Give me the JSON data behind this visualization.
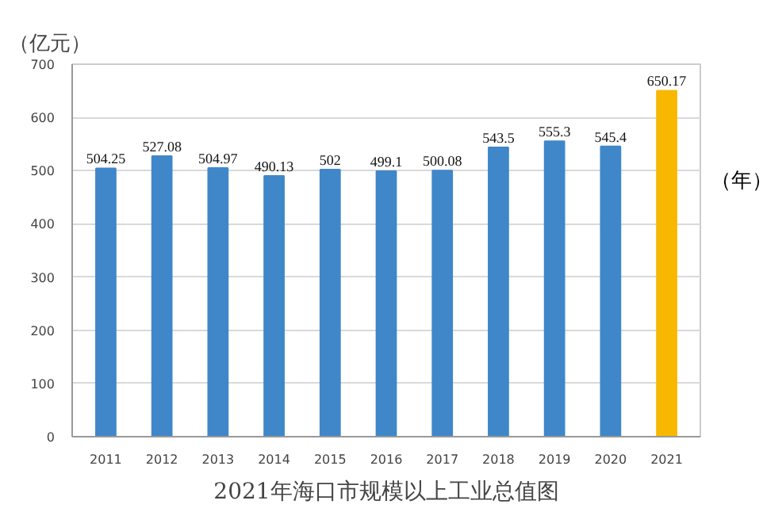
{
  "chart_data": {
    "type": "bar",
    "title": "2021年海口市规模以上工业总值图",
    "ylabel": "（亿元）",
    "xlabel": "（年）",
    "categories": [
      "2011",
      "2012",
      "2013",
      "2014",
      "2015",
      "2016",
      "2017",
      "2018",
      "2019",
      "2020",
      "2021"
    ],
    "values": [
      504.25,
      527.08,
      504.97,
      490.13,
      502,
      499.1,
      500.08,
      543.5,
      555.3,
      545.4,
      650.17
    ],
    "colors": [
      "#3f87c9",
      "#3f87c9",
      "#3f87c9",
      "#3f87c9",
      "#3f87c9",
      "#3f87c9",
      "#3f87c9",
      "#3f87c9",
      "#3f87c9",
      "#3f87c9",
      "#f9b800"
    ],
    "ylim": [
      0,
      700
    ],
    "yticks": [
      0,
      100,
      200,
      300,
      400,
      500,
      600,
      700
    ],
    "grid": "y",
    "data_labels": true
  }
}
